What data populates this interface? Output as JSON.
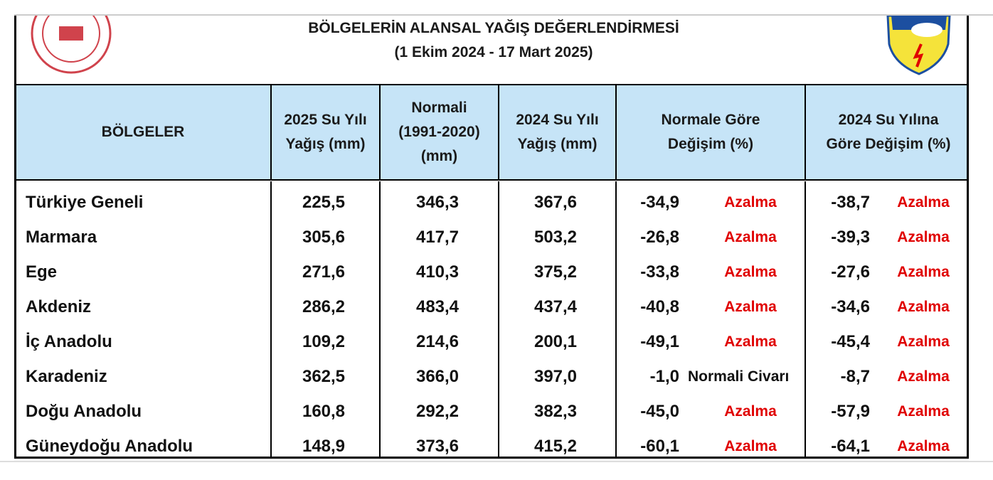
{
  "header": {
    "title": "BÖLGELERİN ALANSAL YAĞIŞ DEĞERLENDİRMESİ",
    "subtitle": "(1 Ekim 2024 - 17 Mart 2025)"
  },
  "table": {
    "columns": [
      [
        "BÖLGELER"
      ],
      [
        "2025 Su Yılı",
        "Yağış (mm)"
      ],
      [
        "Normali",
        "(1991-2020)",
        "(mm)"
      ],
      [
        "2024 Su Yılı",
        "Yağış (mm)"
      ],
      [
        "Normale Göre",
        "Değişim (%)"
      ],
      [
        "2024 Su Yılına",
        "Göre Değişim (%)"
      ]
    ],
    "rows": [
      [
        "Türkiye Geneli",
        "225,5",
        "346,3",
        "367,6",
        "-34,9",
        "Azalma",
        "-38,7",
        "Azalma"
      ],
      [
        "Marmara",
        "305,6",
        "417,7",
        "503,2",
        "-26,8",
        "Azalma",
        "-39,3",
        "Azalma"
      ],
      [
        "Ege",
        "271,6",
        "410,3",
        "375,2",
        "-33,8",
        "Azalma",
        "-27,6",
        "Azalma"
      ],
      [
        "Akdeniz",
        "286,2",
        "483,4",
        "437,4",
        "-40,8",
        "Azalma",
        "-34,6",
        "Azalma"
      ],
      [
        "İç Anadolu",
        "109,2",
        "214,6",
        "200,1",
        "-49,1",
        "Azalma",
        "-45,4",
        "Azalma"
      ],
      [
        "Karadeniz",
        "362,5",
        "366,0",
        "397,0",
        "-1,0",
        "Normali Civarı",
        "-8,7",
        "Azalma"
      ],
      [
        "Doğu Anadolu",
        "160,8",
        "292,2",
        "382,3",
        "-45,0",
        "Azalma",
        "-57,9",
        "Azalma"
      ],
      [
        "Güneydoğu Anadolu",
        "148,9",
        "373,6",
        "415,2",
        "-60,1",
        "Azalma",
        "-64,1",
        "Azalma"
      ]
    ]
  }
}
